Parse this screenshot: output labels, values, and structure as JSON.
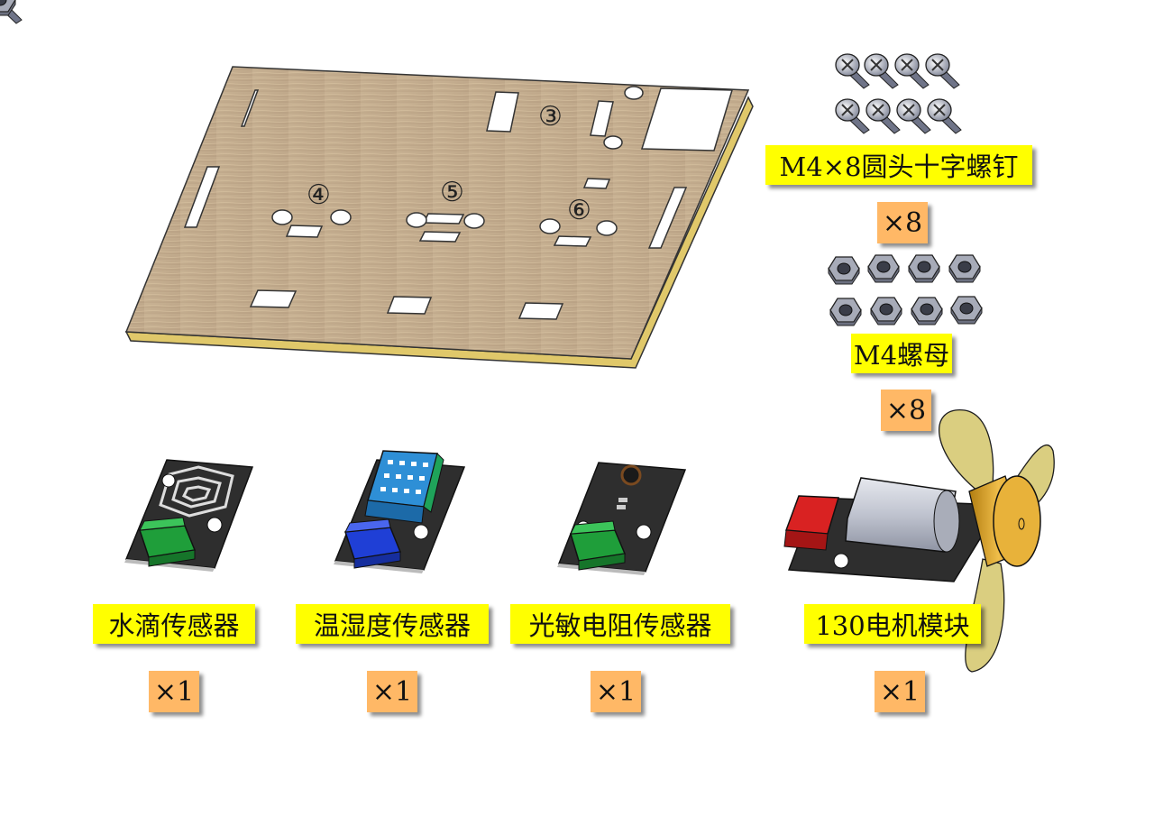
{
  "colors": {
    "label_bg": "#ffff00",
    "qty_bg": "#ffb866",
    "board_wood": "#c7b093",
    "board_edge": "#e0c86a",
    "pcb": "#2e2e2e",
    "connector_green": "#1f9e3a",
    "connector_blue": "#1f3fd6",
    "dht_blue": "#2e8fd6",
    "motor_body": "#c9ccd6",
    "propeller": "#d9cc7a",
    "hub": "#e0a82e",
    "red_connector": "#d92222"
  },
  "board": {
    "hole_labels": [
      "③",
      "④",
      "⑤",
      "⑥"
    ]
  },
  "parts": {
    "screws": {
      "label": "M4×8圆头十字螺钉",
      "qty": "×8",
      "icon": "screw-icon"
    },
    "nuts": {
      "label": "M4螺母",
      "qty": "×8",
      "icon": "nut-icon"
    },
    "water_sensor": {
      "label": "水滴传感器",
      "qty": "×1"
    },
    "dht_sensor": {
      "label": "温湿度传感器",
      "qty": "×1"
    },
    "light_sensor": {
      "label": "光敏电阻传感器",
      "qty": "×1"
    },
    "motor": {
      "label": "130电机模块",
      "qty": "×1"
    }
  }
}
